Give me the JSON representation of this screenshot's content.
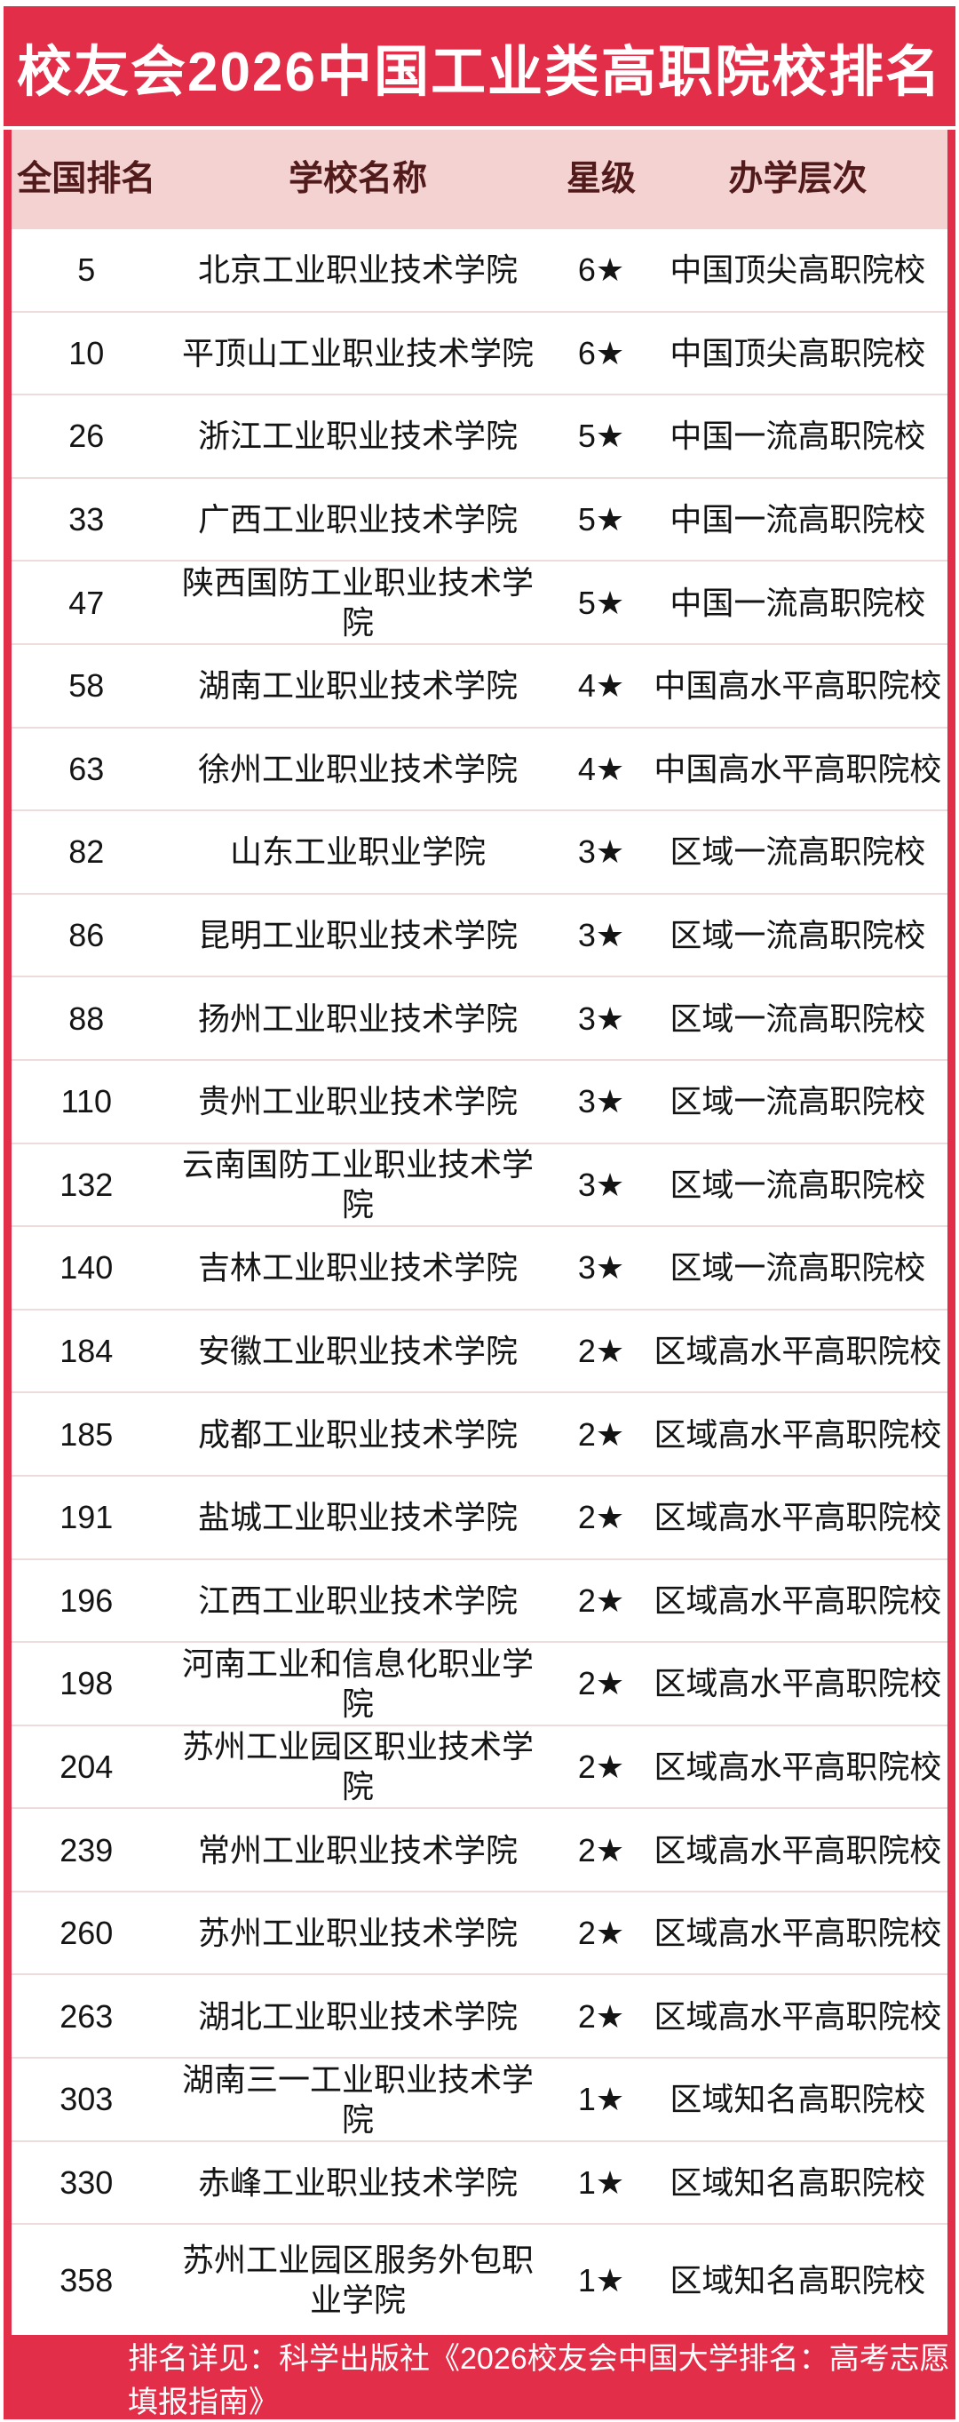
{
  "title": "校友会2026中国工业类高职院校排名",
  "table": {
    "headers": [
      "全国排名",
      "学校名称",
      "星级",
      "办学层次"
    ],
    "rows": [
      {
        "rank": "5",
        "school": "北京工业职业技术学院",
        "stars": "6★",
        "tier": "中国顶尖高职院校"
      },
      {
        "rank": "10",
        "school": "平顶山工业职业技术学院",
        "stars": "6★",
        "tier": "中国顶尖高职院校"
      },
      {
        "rank": "26",
        "school": "浙江工业职业技术学院",
        "stars": "5★",
        "tier": "中国一流高职院校"
      },
      {
        "rank": "33",
        "school": "广西工业职业技术学院",
        "stars": "5★",
        "tier": "中国一流高职院校"
      },
      {
        "rank": "47",
        "school": "陕西国防工业职业技术学院",
        "stars": "5★",
        "tier": "中国一流高职院校"
      },
      {
        "rank": "58",
        "school": "湖南工业职业技术学院",
        "stars": "4★",
        "tier": "中国高水平高职院校"
      },
      {
        "rank": "63",
        "school": "徐州工业职业技术学院",
        "stars": "4★",
        "tier": "中国高水平高职院校"
      },
      {
        "rank": "82",
        "school": "山东工业职业学院",
        "stars": "3★",
        "tier": "区域一流高职院校"
      },
      {
        "rank": "86",
        "school": "昆明工业职业技术学院",
        "stars": "3★",
        "tier": "区域一流高职院校"
      },
      {
        "rank": "88",
        "school": "扬州工业职业技术学院",
        "stars": "3★",
        "tier": "区域一流高职院校"
      },
      {
        "rank": "110",
        "school": "贵州工业职业技术学院",
        "stars": "3★",
        "tier": "区域一流高职院校"
      },
      {
        "rank": "132",
        "school": "云南国防工业职业技术学院",
        "stars": "3★",
        "tier": "区域一流高职院校"
      },
      {
        "rank": "140",
        "school": "吉林工业职业技术学院",
        "stars": "3★",
        "tier": "区域一流高职院校"
      },
      {
        "rank": "184",
        "school": "安徽工业职业技术学院",
        "stars": "2★",
        "tier": "区域高水平高职院校"
      },
      {
        "rank": "185",
        "school": "成都工业职业技术学院",
        "stars": "2★",
        "tier": "区域高水平高职院校"
      },
      {
        "rank": "191",
        "school": "盐城工业职业技术学院",
        "stars": "2★",
        "tier": "区域高水平高职院校"
      },
      {
        "rank": "196",
        "school": "江西工业职业技术学院",
        "stars": "2★",
        "tier": "区域高水平高职院校"
      },
      {
        "rank": "198",
        "school": "河南工业和信息化职业学院",
        "stars": "2★",
        "tier": "区域高水平高职院校"
      },
      {
        "rank": "204",
        "school": "苏州工业园区职业技术学院",
        "stars": "2★",
        "tier": "区域高水平高职院校"
      },
      {
        "rank": "239",
        "school": "常州工业职业技术学院",
        "stars": "2★",
        "tier": "区域高水平高职院校"
      },
      {
        "rank": "260",
        "school": "苏州工业职业技术学院",
        "stars": "2★",
        "tier": "区域高水平高职院校"
      },
      {
        "rank": "263",
        "school": "湖北工业职业技术学院",
        "stars": "2★",
        "tier": "区域高水平高职院校"
      },
      {
        "rank": "303",
        "school": "湖南三一工业职业技术学院",
        "stars": "1★",
        "tier": "区域知名高职院校"
      },
      {
        "rank": "330",
        "school": "赤峰工业职业技术学院",
        "stars": "1★",
        "tier": "区域知名高职院校"
      },
      {
        "rank": "358",
        "school": "苏州工业园区服务外包职业学院",
        "stars": "1★",
        "tier": "区域知名高职院校"
      }
    ]
  },
  "footer": {
    "note": "排名详见：科学出版社《2026校友会中国大学排名：高考志愿填报指南》"
  },
  "colors": {
    "accent_red": "#e22e48",
    "header_pink": "#f5d2d2",
    "header_text": "#521b1b",
    "divider": "#ecdcdc",
    "row_text": "#141414"
  },
  "chart_data": {
    "type": "table",
    "title": "校友会2026中国工业类高职院校排名",
    "columns": [
      "全国排名",
      "学校名称",
      "星级",
      "办学层次"
    ],
    "rows": [
      [
        "5",
        "北京工业职业技术学院",
        "6★",
        "中国顶尖高职院校"
      ],
      [
        "10",
        "平顶山工业职业技术学院",
        "6★",
        "中国顶尖高职院校"
      ],
      [
        "26",
        "浙江工业职业技术学院",
        "5★",
        "中国一流高职院校"
      ],
      [
        "33",
        "广西工业职业技术学院",
        "5★",
        "中国一流高职院校"
      ],
      [
        "47",
        "陕西国防工业职业技术学院",
        "5★",
        "中国一流高职院校"
      ],
      [
        "58",
        "湖南工业职业技术学院",
        "4★",
        "中国高水平高职院校"
      ],
      [
        "63",
        "徐州工业职业技术学院",
        "4★",
        "中国高水平高职院校"
      ],
      [
        "82",
        "山东工业职业学院",
        "3★",
        "区域一流高职院校"
      ],
      [
        "86",
        "昆明工业职业技术学院",
        "3★",
        "区域一流高职院校"
      ],
      [
        "88",
        "扬州工业职业技术学院",
        "3★",
        "区域一流高职院校"
      ],
      [
        "110",
        "贵州工业职业技术学院",
        "3★",
        "区域一流高职院校"
      ],
      [
        "132",
        "云南国防工业职业技术学院",
        "3★",
        "区域一流高职院校"
      ],
      [
        "140",
        "吉林工业职业技术学院",
        "3★",
        "区域一流高职院校"
      ],
      [
        "184",
        "安徽工业职业技术学院",
        "2★",
        "区域高水平高职院校"
      ],
      [
        "185",
        "成都工业职业技术学院",
        "2★",
        "区域高水平高职院校"
      ],
      [
        "191",
        "盐城工业职业技术学院",
        "2★",
        "区域高水平高职院校"
      ],
      [
        "196",
        "江西工业职业技术学院",
        "2★",
        "区域高水平高职院校"
      ],
      [
        "198",
        "河南工业和信息化职业学院",
        "2★",
        "区域高水平高职院校"
      ],
      [
        "204",
        "苏州工业园区职业技术学院",
        "2★",
        "区域高水平高职院校"
      ],
      [
        "239",
        "常州工业职业技术学院",
        "2★",
        "区域高水平高职院校"
      ],
      [
        "260",
        "苏州工业职业技术学院",
        "2★",
        "区域高水平高职院校"
      ],
      [
        "263",
        "湖北工业职业技术学院",
        "2★",
        "区域高水平高职院校"
      ],
      [
        "303",
        "湖南三一工业职业技术学院",
        "1★",
        "区域知名高职院校"
      ],
      [
        "330",
        "赤峰工业职业技术学院",
        "1★",
        "区域知名高职院校"
      ],
      [
        "358",
        "苏州工业园区服务外包职业学院",
        "1★",
        "区域知名高职院校"
      ]
    ]
  }
}
